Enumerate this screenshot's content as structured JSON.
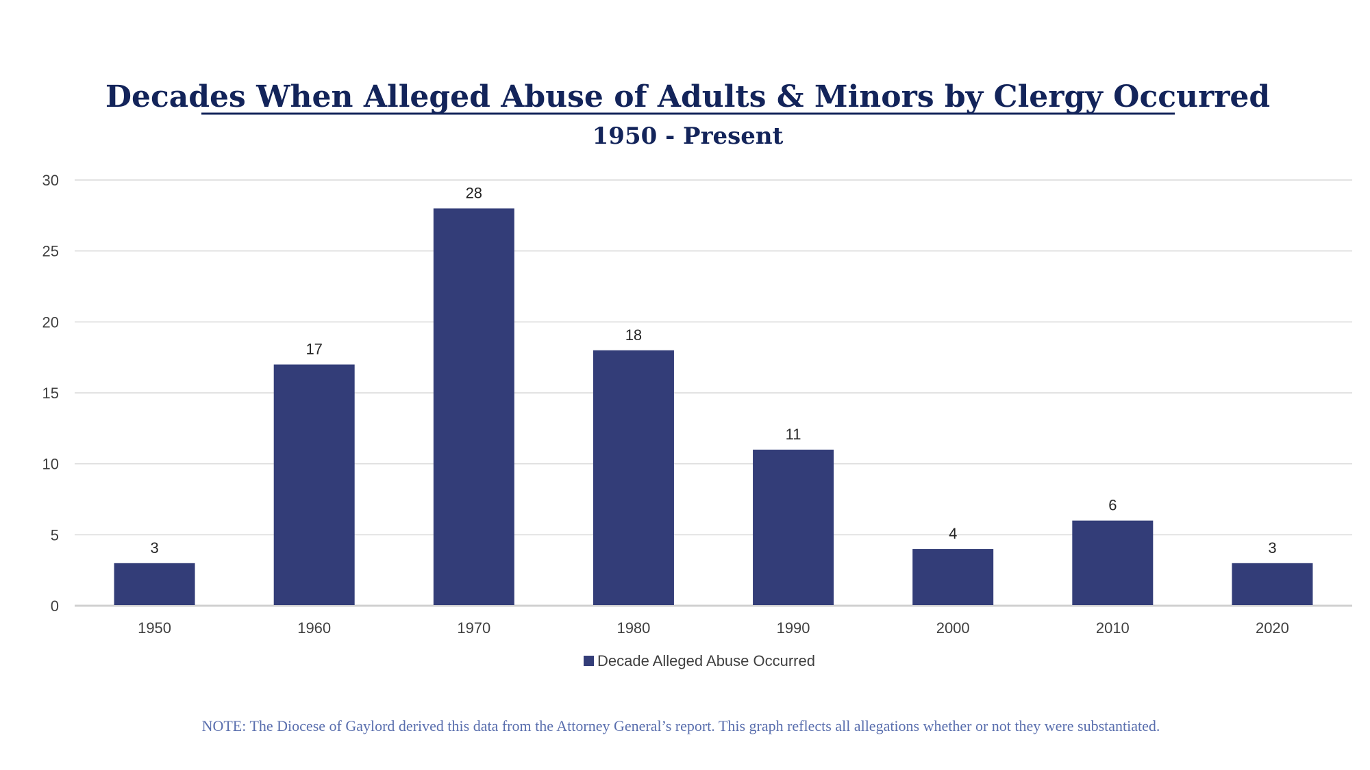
{
  "chart_data": {
    "type": "bar",
    "title": "Decades When Alleged Abuse of Adults & Minors by Clergy Occurred",
    "subtitle": "1950 - Present",
    "categories": [
      "1950",
      "1960",
      "1970",
      "1980",
      "1990",
      "2000",
      "2010",
      "2020"
    ],
    "series": [
      {
        "name": "Decade Alleged Abuse Occurred",
        "values": [
          3,
          17,
          28,
          18,
          11,
          4,
          6,
          3
        ],
        "color": "#333d78"
      }
    ],
    "xlabel": "",
    "ylabel": "",
    "ylim": [
      0,
      30
    ],
    "yticks": [
      0,
      5,
      10,
      15,
      20,
      25,
      30
    ],
    "grid": true,
    "legend_position": "bottom",
    "data_labels": true
  },
  "note": "NOTE: The Diocese of Gaylord derived this data from the Attorney General’s report. This graph reflects all allegations whether or not they were substantiated.",
  "colors": {
    "title": "#13245a",
    "bar": "#333d78",
    "grid": "#d9d9d9",
    "note": "#5a6fae"
  }
}
